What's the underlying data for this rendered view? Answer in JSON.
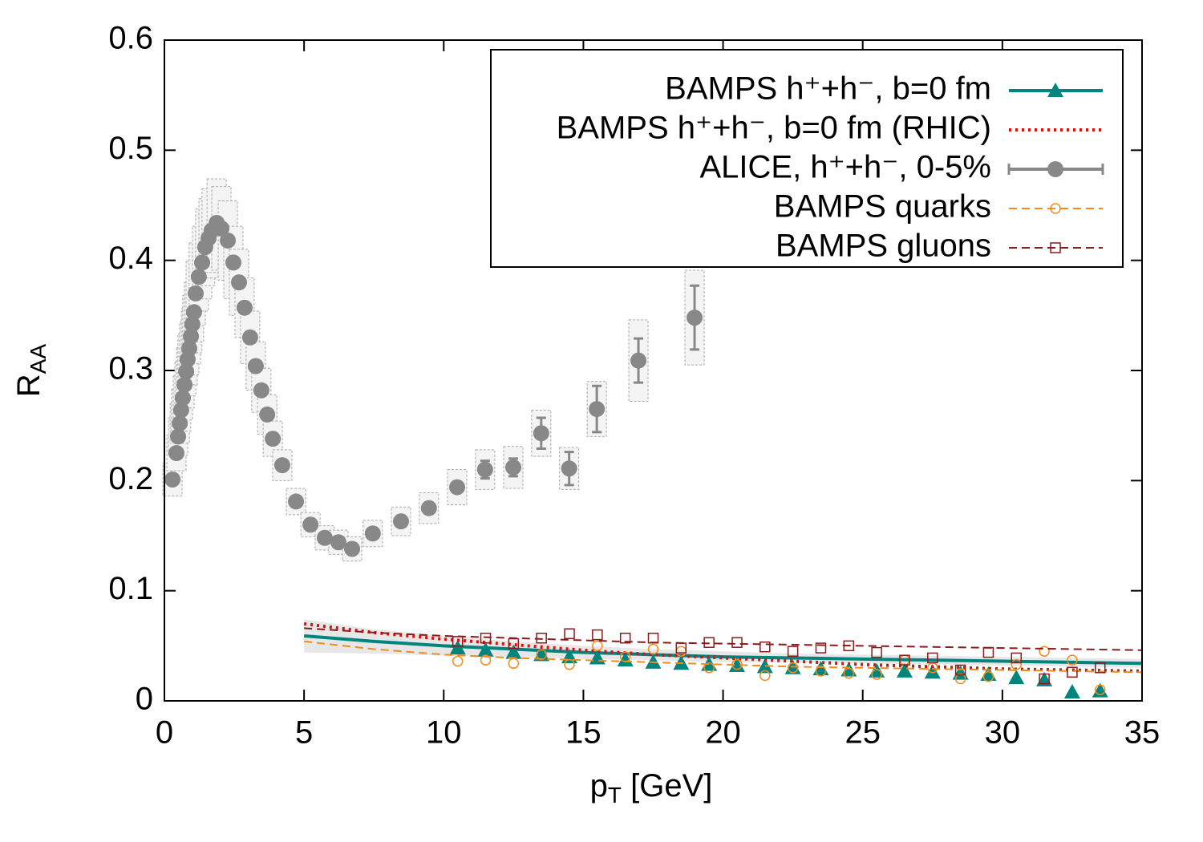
{
  "chart_data": {
    "type": "scatter",
    "x_label": {
      "base": "p",
      "sub": "T",
      "rest": " [GeV]"
    },
    "y_label": {
      "base": "R",
      "sub": "AA"
    },
    "xlim": [
      0,
      35
    ],
    "xticks": [
      0,
      5,
      10,
      15,
      20,
      25,
      30,
      35
    ],
    "ylim": [
      0,
      0.6
    ],
    "yticks": [
      0,
      0.1,
      0.2,
      0.3,
      0.4,
      0.5,
      0.6
    ],
    "legend": "upper right",
    "curve_x": [
      5,
      7.5,
      10,
      12.5,
      15,
      17.5,
      20,
      22.5,
      25,
      27.5,
      30,
      32.5,
      35
    ],
    "series": [
      {
        "name": "BAMPS h⁺+h⁻, b=0 fm",
        "color": "#00857e",
        "marker": "triangle",
        "line_style": "solid",
        "x": [
          10.5,
          11.5,
          12.5,
          13.5,
          14.5,
          15.5,
          16.5,
          17.5,
          18.5,
          19.5,
          20.5,
          21.5,
          22.5,
          23.5,
          24.5,
          25.5,
          26.5,
          27.5,
          28.5,
          29.5,
          30.5,
          31.5,
          32.5,
          33.5
        ],
        "values": [
          0.048,
          0.046,
          0.044,
          0.042,
          0.04,
          0.039,
          0.037,
          0.035,
          0.034,
          0.033,
          0.032,
          0.031,
          0.03,
          0.029,
          0.028,
          0.027,
          0.027,
          0.026,
          0.025,
          0.024,
          0.021,
          0.019,
          0.008,
          0.009
        ],
        "line_values": [
          0.059,
          0.054,
          0.05,
          0.047,
          0.044,
          0.042,
          0.04,
          0.039,
          0.038,
          0.037,
          0.036,
          0.035,
          0.034
        ],
        "band": [
          0.015,
          0.011,
          0.009,
          0.007,
          0.006,
          0.005,
          0.005,
          0.004,
          0.004,
          0.004,
          0.004,
          0.004,
          0.004
        ]
      },
      {
        "name": "BAMPS h⁺+h⁻, b=0 fm (RHIC)",
        "color": "#dd1010",
        "marker": "none",
        "line_style": "dotted",
        "line_values": [
          0.07,
          0.062,
          0.056,
          0.051,
          0.046,
          0.042,
          0.039,
          0.036,
          0.033,
          0.031,
          0.029,
          0.028,
          0.027
        ]
      },
      {
        "name": "ALICE, h⁺+h⁻, 0-5%",
        "color": "#888888",
        "marker": "circle",
        "line_style": "solid",
        "x": [
          0.29,
          0.43,
          0.49,
          0.55,
          0.6,
          0.66,
          0.72,
          0.78,
          0.83,
          0.89,
          0.95,
          1.0,
          1.06,
          1.12,
          1.23,
          1.35,
          1.46,
          1.58,
          1.69,
          1.87,
          2.04,
          2.27,
          2.47,
          2.67,
          2.87,
          3.07,
          3.27,
          3.47,
          3.68,
          3.88,
          4.22,
          4.71,
          5.23,
          5.74,
          6.23,
          6.72,
          7.46,
          8.47,
          9.47,
          10.48,
          11.48,
          12.49,
          13.49,
          14.49,
          15.48,
          16.97,
          18.98
        ],
        "values": [
          0.201,
          0.225,
          0.24,
          0.252,
          0.264,
          0.275,
          0.287,
          0.299,
          0.31,
          0.32,
          0.331,
          0.342,
          0.353,
          0.37,
          0.385,
          0.398,
          0.412,
          0.42,
          0.427,
          0.434,
          0.429,
          0.418,
          0.398,
          0.38,
          0.357,
          0.33,
          0.304,
          0.282,
          0.26,
          0.238,
          0.214,
          0.181,
          0.16,
          0.148,
          0.144,
          0.138,
          0.152,
          0.163,
          0.175,
          0.194,
          0.21,
          0.212,
          0.243,
          0.211,
          0.265,
          0.309,
          0.348
        ],
        "stat_err": [
          0.002,
          0.002,
          0.002,
          0.002,
          0.002,
          0.002,
          0.002,
          0.002,
          0.002,
          0.002,
          0.002,
          0.002,
          0.002,
          0.002,
          0.002,
          0.002,
          0.002,
          0.002,
          0.002,
          0.002,
          0.002,
          0.002,
          0.002,
          0.002,
          0.002,
          0.002,
          0.002,
          0.002,
          0.002,
          0.002,
          0.002,
          0.002,
          0.002,
          0.002,
          0.002,
          0.002,
          0.002,
          0.002,
          0.002,
          0.002,
          0.008,
          0.008,
          0.014,
          0.015,
          0.021,
          0.02,
          0.029
        ],
        "syst_err": [
          0.015,
          0.016,
          0.017,
          0.018,
          0.019,
          0.02,
          0.021,
          0.022,
          0.023,
          0.024,
          0.025,
          0.026,
          0.027,
          0.029,
          0.031,
          0.033,
          0.035,
          0.036,
          0.038,
          0.04,
          0.038,
          0.036,
          0.033,
          0.03,
          0.027,
          0.024,
          0.022,
          0.02,
          0.018,
          0.016,
          0.014,
          0.012,
          0.011,
          0.011,
          0.011,
          0.011,
          0.012,
          0.013,
          0.014,
          0.016,
          0.018,
          0.019,
          0.021,
          0.019,
          0.025,
          0.037,
          0.043
        ]
      },
      {
        "name": "BAMPS quarks",
        "color": "#f08c1e",
        "marker": "open-circle",
        "line_style": "dashed",
        "x": [
          10.5,
          11.5,
          12.5,
          13.5,
          14.5,
          15.5,
          16.5,
          17.5,
          18.5,
          19.5,
          20.5,
          21.5,
          22.5,
          23.5,
          24.5,
          25.5,
          26.5,
          27.5,
          28.5,
          29.5,
          30.5,
          31.5,
          32.5,
          33.5
        ],
        "values": [
          0.036,
          0.037,
          0.034,
          0.042,
          0.033,
          0.05,
          0.04,
          0.047,
          0.045,
          0.03,
          0.033,
          0.023,
          0.03,
          0.027,
          0.025,
          0.024,
          0.037,
          0.03,
          0.02,
          0.022,
          0.033,
          0.045,
          0.037,
          0.01
        ],
        "line_values": [
          0.054,
          0.047,
          0.042,
          0.039,
          0.037,
          0.035,
          0.033,
          0.031,
          0.03,
          0.029,
          0.028,
          0.027,
          0.026
        ]
      },
      {
        "name": "BAMPS gluons",
        "color": "#8b1a1a",
        "marker": "open-square",
        "line_style": "dashed",
        "x": [
          10.5,
          11.5,
          12.5,
          13.5,
          14.5,
          15.5,
          16.5,
          17.5,
          18.5,
          19.5,
          20.5,
          21.5,
          22.5,
          23.5,
          24.5,
          25.5,
          26.5,
          27.5,
          28.5,
          29.5,
          30.5,
          31.5,
          32.5,
          33.5
        ],
        "values": [
          0.054,
          0.057,
          0.052,
          0.057,
          0.061,
          0.06,
          0.057,
          0.057,
          0.048,
          0.053,
          0.053,
          0.049,
          0.045,
          0.048,
          0.05,
          0.044,
          0.037,
          0.039,
          0.028,
          0.044,
          0.039,
          0.02,
          0.026,
          0.03
        ],
        "line_values": [
          0.066,
          0.062,
          0.059,
          0.057,
          0.055,
          0.053,
          0.052,
          0.051,
          0.05,
          0.049,
          0.048,
          0.047,
          0.046
        ]
      }
    ]
  }
}
